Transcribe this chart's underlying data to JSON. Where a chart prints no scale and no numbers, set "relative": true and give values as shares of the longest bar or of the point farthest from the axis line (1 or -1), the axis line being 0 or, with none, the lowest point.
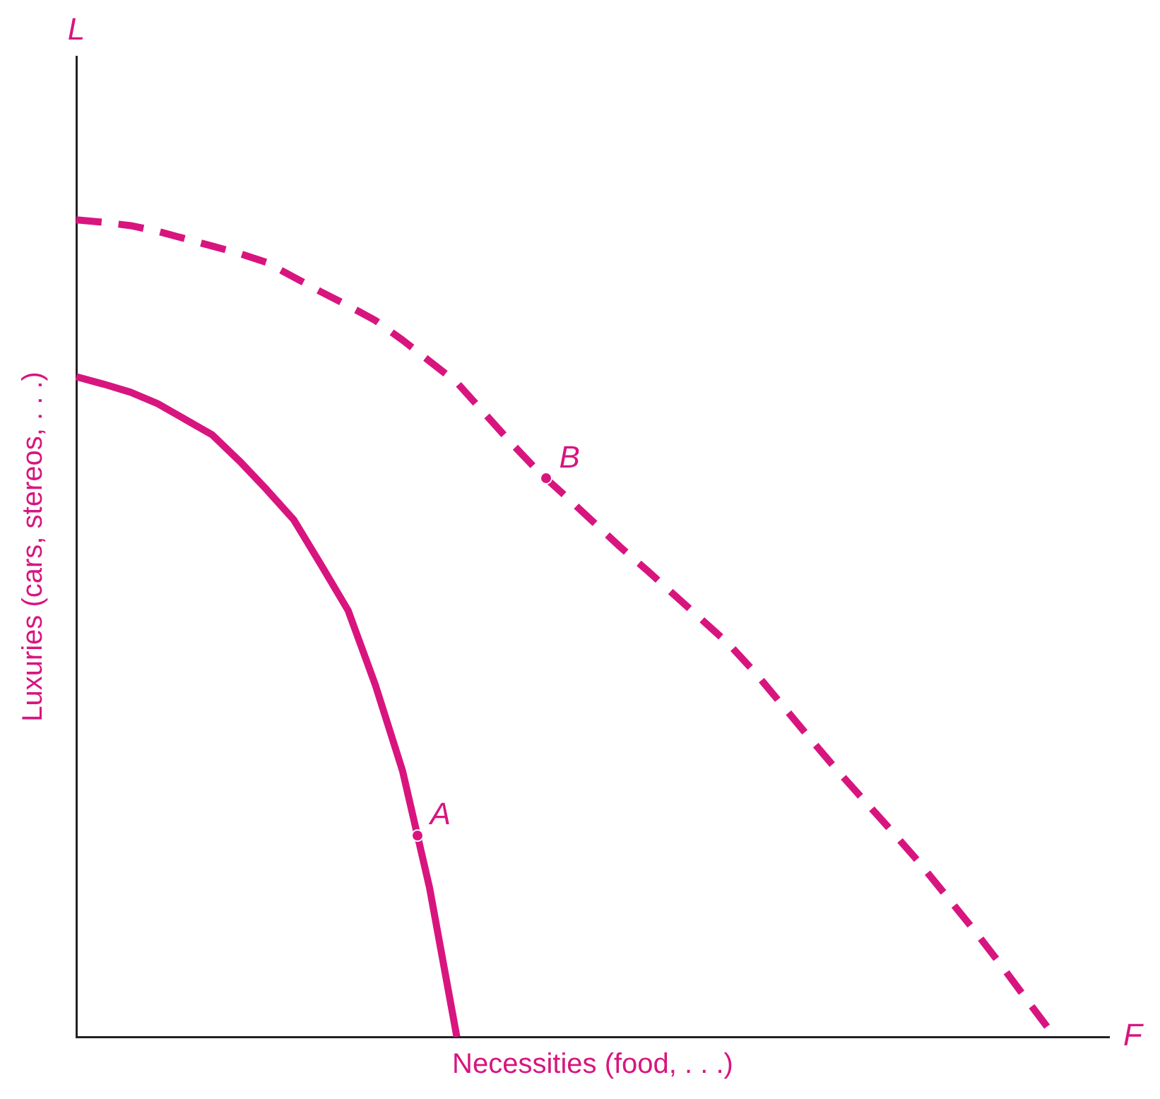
{
  "chart_data": {
    "type": "line",
    "relative": true,
    "xlabel": "Necessities (food, . . .)",
    "ylabel": "Luxuries (cars, stereos, . . .)",
    "legend": false,
    "grid": false,
    "marker": "none",
    "categories": [
      null,
      null,
      null,
      null,
      null,
      null,
      null,
      null,
      null,
      null,
      null,
      null,
      null,
      null,
      null,
      null,
      null,
      null,
      null,
      null,
      null,
      null,
      null,
      null,
      null,
      null,
      null,
      null,
      null,
      null,
      null,
      null,
      null,
      null,
      null,
      null,
      null,
      null,
      null
    ],
    "series": [
      {
        "color": "#d8157f",
        "line_style": "solid",
        "values": [
          0.808,
          0.799,
          0.789,
          0.775,
          0.756,
          0.737,
          0.705,
          0.67,
          0.633,
          0.578,
          0.522,
          0.431,
          0.326,
          0.182,
          0,
          null,
          null,
          null,
          null,
          null,
          null,
          null,
          null,
          null,
          null,
          null,
          null,
          null,
          null,
          null,
          null,
          null,
          null,
          null,
          null,
          null,
          null,
          null,
          null
        ]
      },
      {
        "color": "#d8157f",
        "line_style": "dashed",
        "values": [
          1,
          0.997,
          0.993,
          0.986,
          0.977,
          0.968,
          0.959,
          0.948,
          0.93,
          0.912,
          0.895,
          0.877,
          0.853,
          0.827,
          0.801,
          0.764,
          0.727,
          0.692,
          0.662,
          0.631,
          0.6,
          0.571,
          0.541,
          0.511,
          0.481,
          0.445,
          0.405,
          0.365,
          0.326,
          0.289,
          0.252,
          0.214,
          0.173,
          0.132,
          0.089,
          0.044,
          0,
          null,
          null
        ]
      }
    ],
    "annotations": [
      "L",
      "F",
      "A",
      "B"
    ]
  }
}
